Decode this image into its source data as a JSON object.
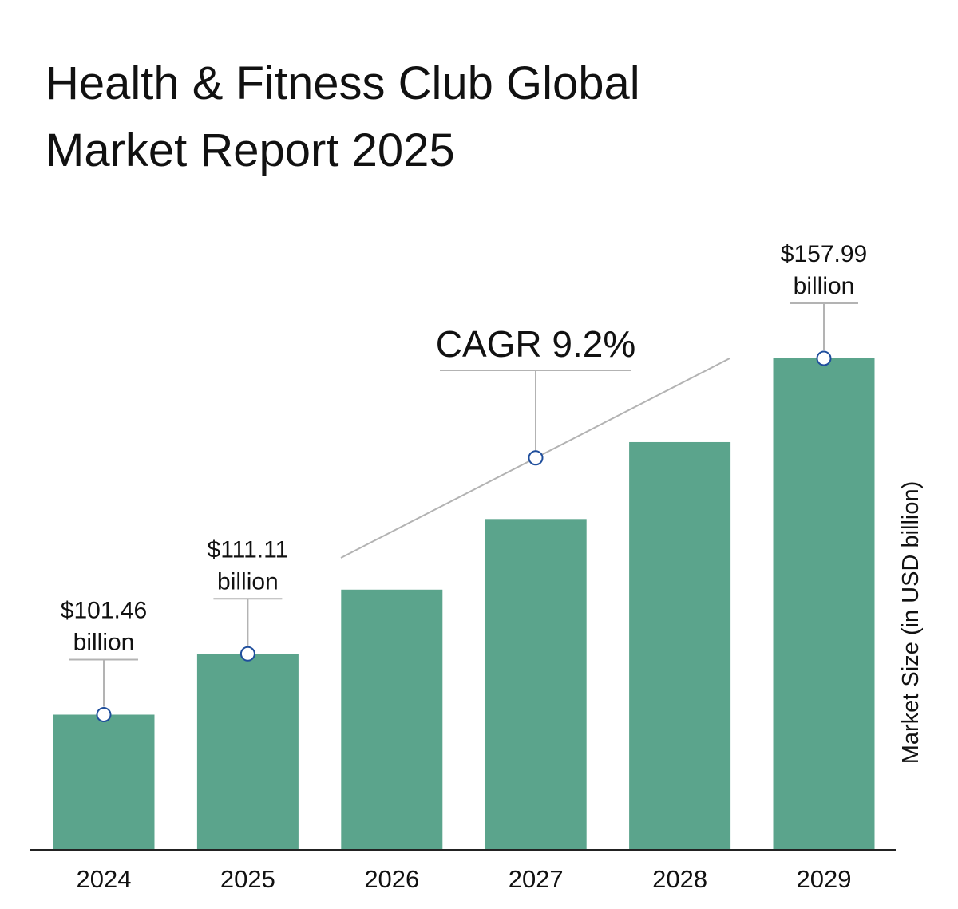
{
  "chart_data": {
    "type": "bar",
    "title": [
      "Health & Fitness Club Global",
      "Market Report 2025"
    ],
    "ylabel": "Market Size (in USD billion)",
    "xlabel": "",
    "categories": [
      "2024",
      "2025",
      "2026",
      "2027",
      "2028",
      "2029"
    ],
    "values": [
      101.46,
      111.11,
      121.3,
      132.5,
      144.7,
      157.99
    ],
    "ylim": [
      80,
      160
    ],
    "grid": false,
    "legend": "none",
    "bar_color": "#5ba48c",
    "marker_stroke": "#1f4e9c",
    "annotations": [
      {
        "index": 0,
        "lines": [
          "$101.46",
          "billion"
        ]
      },
      {
        "index": 1,
        "lines": [
          "$111.11",
          "billion"
        ]
      },
      {
        "index": 5,
        "lines": [
          "$157.99",
          "billion"
        ]
      }
    ],
    "cagr": {
      "label": "CAGR 9.2%"
    }
  }
}
